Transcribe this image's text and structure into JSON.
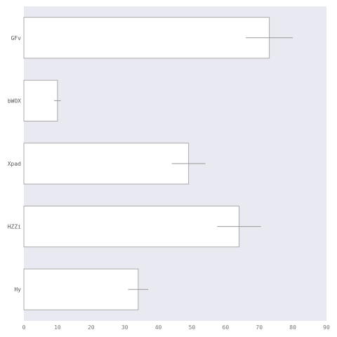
{
  "chart_data": {
    "type": "bar",
    "orientation": "horizontal",
    "categories": [
      "GFv",
      "bWOX",
      "Xpad",
      "HZZi",
      "Hy"
    ],
    "values": [
      73,
      10,
      49,
      64,
      34
    ],
    "errors": [
      7,
      1,
      5,
      6.5,
      3
    ],
    "xlim": [
      0,
      90
    ],
    "xticks": [
      0,
      10,
      20,
      30,
      40,
      50,
      60,
      70,
      80,
      90
    ],
    "title": "",
    "xlabel": "",
    "ylabel": "",
    "grid": false,
    "colors": {
      "background": "#e9e9f1",
      "bar_fill": "#ffffff",
      "bar_edge": "#aaaaaa",
      "error_bar": "#999999"
    }
  }
}
